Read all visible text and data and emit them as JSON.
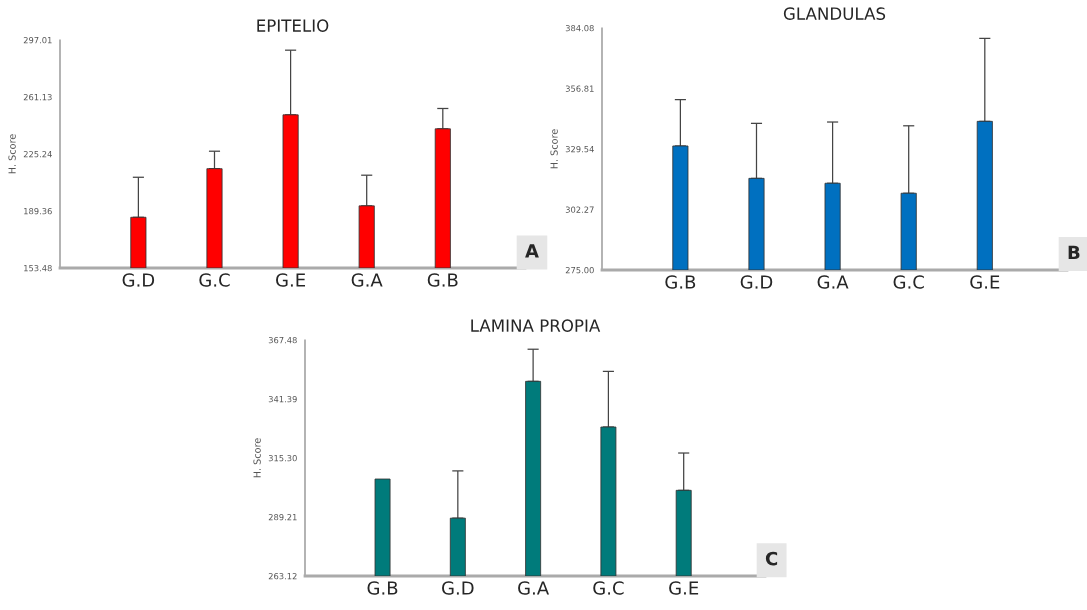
{
  "chart_data": [
    {
      "type": "bar",
      "title": "EPITELIO",
      "ylabel": "H. Score",
      "categories": [
        "G.D",
        "G.C",
        "G.E",
        "G.A",
        "G.B"
      ],
      "values": [
        185.4,
        216.0,
        249.9,
        192.6,
        241.1
      ],
      "color": "#ff0000",
      "errors": [
        [
          185.4,
          210.6
        ],
        [
          216.0,
          227.0
        ],
        [
          249.9,
          290.6
        ],
        [
          192.6,
          211.9
        ],
        [
          241.1,
          253.9
        ]
      ],
      "ylim": [
        153.48,
        297.01
      ],
      "yticks": [
        153.48,
        189.36,
        225.24,
        261.13,
        297.01
      ],
      "grid": false,
      "annotations": [
        "A"
      ]
    },
    {
      "type": "bar",
      "title": "GLANDULAS",
      "ylabel": "H. Score",
      "categories": [
        "G.B",
        "G.D",
        "G.A",
        "G.C",
        "G.E"
      ],
      "values": [
        330.9,
        316.3,
        314.1,
        309.6,
        342.0
      ],
      "color": "#0070c0",
      "errors": [
        [
          330.9,
          351.8
        ],
        [
          316.3,
          341.1
        ],
        [
          314.1,
          341.7
        ],
        [
          309.6,
          340.0
        ],
        [
          342.0,
          379.4
        ]
      ],
      "ylim": [
        275.0,
        384.08
      ],
      "yticks": [
        {
          "value": 275.0,
          "label": "275.00"
        },
        302.27,
        329.54,
        356.81,
        384.08
      ],
      "grid": false,
      "annotations": [
        "B"
      ]
    },
    {
      "type": "bar",
      "title": "LAMINA PROPIA",
      "ylabel": "H. Score",
      "categories": [
        "G.B",
        "G.D",
        "G.A",
        "G.C",
        "G.E"
      ],
      "values": [
        306.0,
        288.7,
        349.2,
        329.0,
        301.0
      ],
      "color": "#007b7b",
      "errors": [
        null,
        [
          288.7,
          309.6
        ],
        [
          349.2,
          363.4
        ],
        [
          329.0,
          353.6
        ],
        [
          301.0,
          317.5
        ]
      ],
      "ylim": [
        263.12,
        367.48
      ],
      "yticks": [
        263.12,
        289.21,
        {
          "value": 315.3,
          "label": "315.30"
        },
        341.39,
        367.48
      ],
      "grid": false,
      "annotations": [
        "C"
      ]
    }
  ]
}
